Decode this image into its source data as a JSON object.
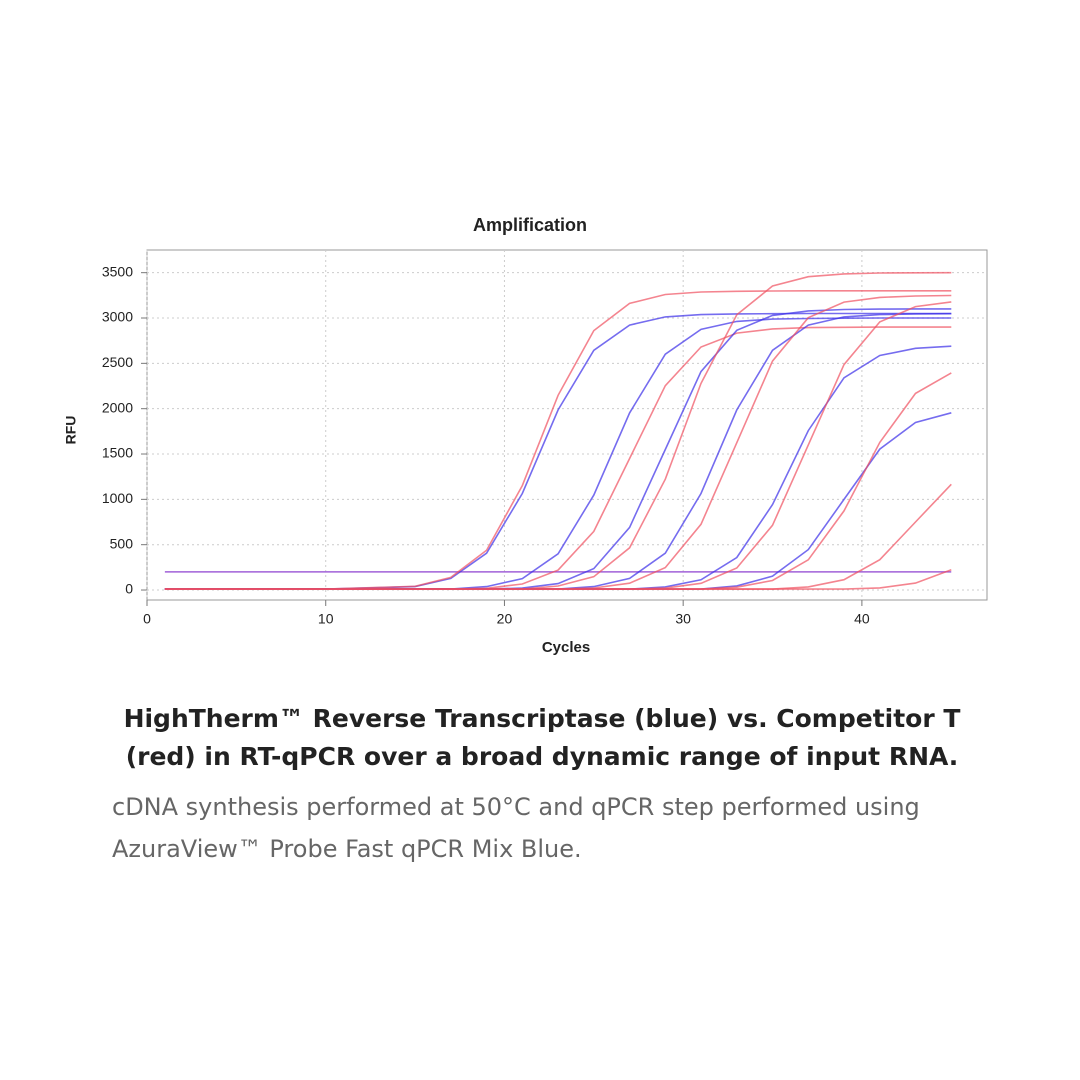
{
  "chart_data": {
    "type": "line",
    "title": "Amplification",
    "x_label": "Cycles",
    "y_label": "RFU",
    "x": [
      1,
      10,
      15,
      17,
      19,
      21,
      23,
      25,
      27,
      29,
      31,
      33,
      35,
      37,
      39,
      41,
      43,
      45
    ],
    "xlim": [
      0,
      47
    ],
    "ylim": [
      -110,
      3750
    ],
    "xticks": [
      0,
      10,
      20,
      30,
      40
    ],
    "yticks": [
      0,
      500,
      1000,
      1500,
      2000,
      2500,
      3000,
      3500
    ],
    "grid": true,
    "threshold": 200,
    "threshold_color": "#a060d8",
    "series": [
      {
        "color": "#3a2ee8",
        "values": [
          10,
          10,
          38,
          128,
          406,
          1064,
          1986,
          2644,
          2922,
          3012,
          3038,
          3045,
          3048,
          3050,
          3050,
          3050,
          3050,
          3050
        ]
      },
      {
        "color": "#f05060",
        "values": [
          10,
          10,
          41,
          139,
          439,
          1152,
          2148,
          2861,
          3161,
          3259,
          3287,
          3295,
          3298,
          3300,
          3300,
          3300,
          3300,
          3300
        ]
      },
      {
        "color": "#3a2ee8",
        "values": [
          10,
          10,
          10,
          11,
          38,
          126,
          399,
          1047,
          1953,
          2601,
          2874,
          2963,
          2988,
          2995,
          2998,
          3000,
          3000,
          3000
        ]
      },
      {
        "color": "#f05060",
        "values": [
          10,
          10,
          10,
          10,
          19,
          67,
          220,
          647,
          1450,
          2253,
          2680,
          2833,
          2880,
          2894,
          2898,
          2900,
          2900,
          2900
        ]
      },
      {
        "color": "#3a2ee8",
        "values": [
          10,
          10,
          10,
          10,
          10,
          21,
          71,
          236,
          691,
          1550,
          2409,
          2864,
          3029,
          3078,
          3094,
          3098,
          3100,
          3100
        ]
      },
      {
        "color": "#f05060",
        "values": [
          10,
          10,
          10,
          10,
          10,
          10,
          44,
          147,
          466,
          1222,
          2279,
          3035,
          3353,
          3456,
          3486,
          3496,
          3499,
          3500
        ]
      },
      {
        "color": "#3a2ee8",
        "values": [
          10,
          10,
          10,
          10,
          10,
          10,
          10,
          38,
          128,
          406,
          1064,
          1986,
          2644,
          2922,
          3012,
          3038,
          3045,
          3048
        ]
      },
      {
        "color": "#f05060",
        "values": [
          10,
          10,
          10,
          10,
          10,
          10,
          10,
          22,
          75,
          247,
          725,
          1625,
          2525,
          3003,
          3175,
          3227,
          3243,
          3248
        ]
      },
      {
        "color": "#3a2ee8",
        "values": [
          10,
          10,
          10,
          10,
          10,
          10,
          10,
          10,
          10,
          34,
          113,
          359,
          942,
          1758,
          2341,
          2587,
          2666,
          2689
        ]
      },
      {
        "color": "#f05060",
        "values": [
          10,
          10,
          10,
          10,
          10,
          10,
          10,
          10,
          10,
          21,
          74,
          243,
          714,
          1600,
          2486,
          2957,
          3126,
          3178
        ]
      },
      {
        "color": "#3a2ee8",
        "values": [
          10,
          10,
          10,
          10,
          10,
          10,
          10,
          10,
          10,
          10,
          10,
          46,
          152,
          446,
          1000,
          1554,
          1848,
          1954
        ]
      },
      {
        "color": "#f05060",
        "values": [
          10,
          10,
          10,
          10,
          10,
          10,
          10,
          10,
          10,
          10,
          10,
          31,
          105,
          333,
          873,
          1628,
          2168,
          2395
        ]
      },
      {
        "color": "#f05060",
        "values": [
          10,
          10,
          10,
          10,
          10,
          10,
          10,
          10,
          10,
          10,
          10,
          10,
          10,
          35,
          114,
          335,
          750,
          1166
        ]
      },
      {
        "color": "#f05060",
        "values": [
          10,
          10,
          10,
          10,
          10,
          10,
          10,
          10,
          10,
          10,
          10,
          10,
          10,
          10,
          10,
          23,
          76,
          223
        ]
      }
    ]
  },
  "caption": {
    "heading": " HighTherm™ Reverse Transcriptase (blue) vs. Competitor T (red) in RT-qPCR over a broad dynamic range of input RNA.",
    "text": "cDNA synthesis performed at 50°C and qPCR step performed using AzuraView™ Probe Fast qPCR Mix Blue."
  }
}
